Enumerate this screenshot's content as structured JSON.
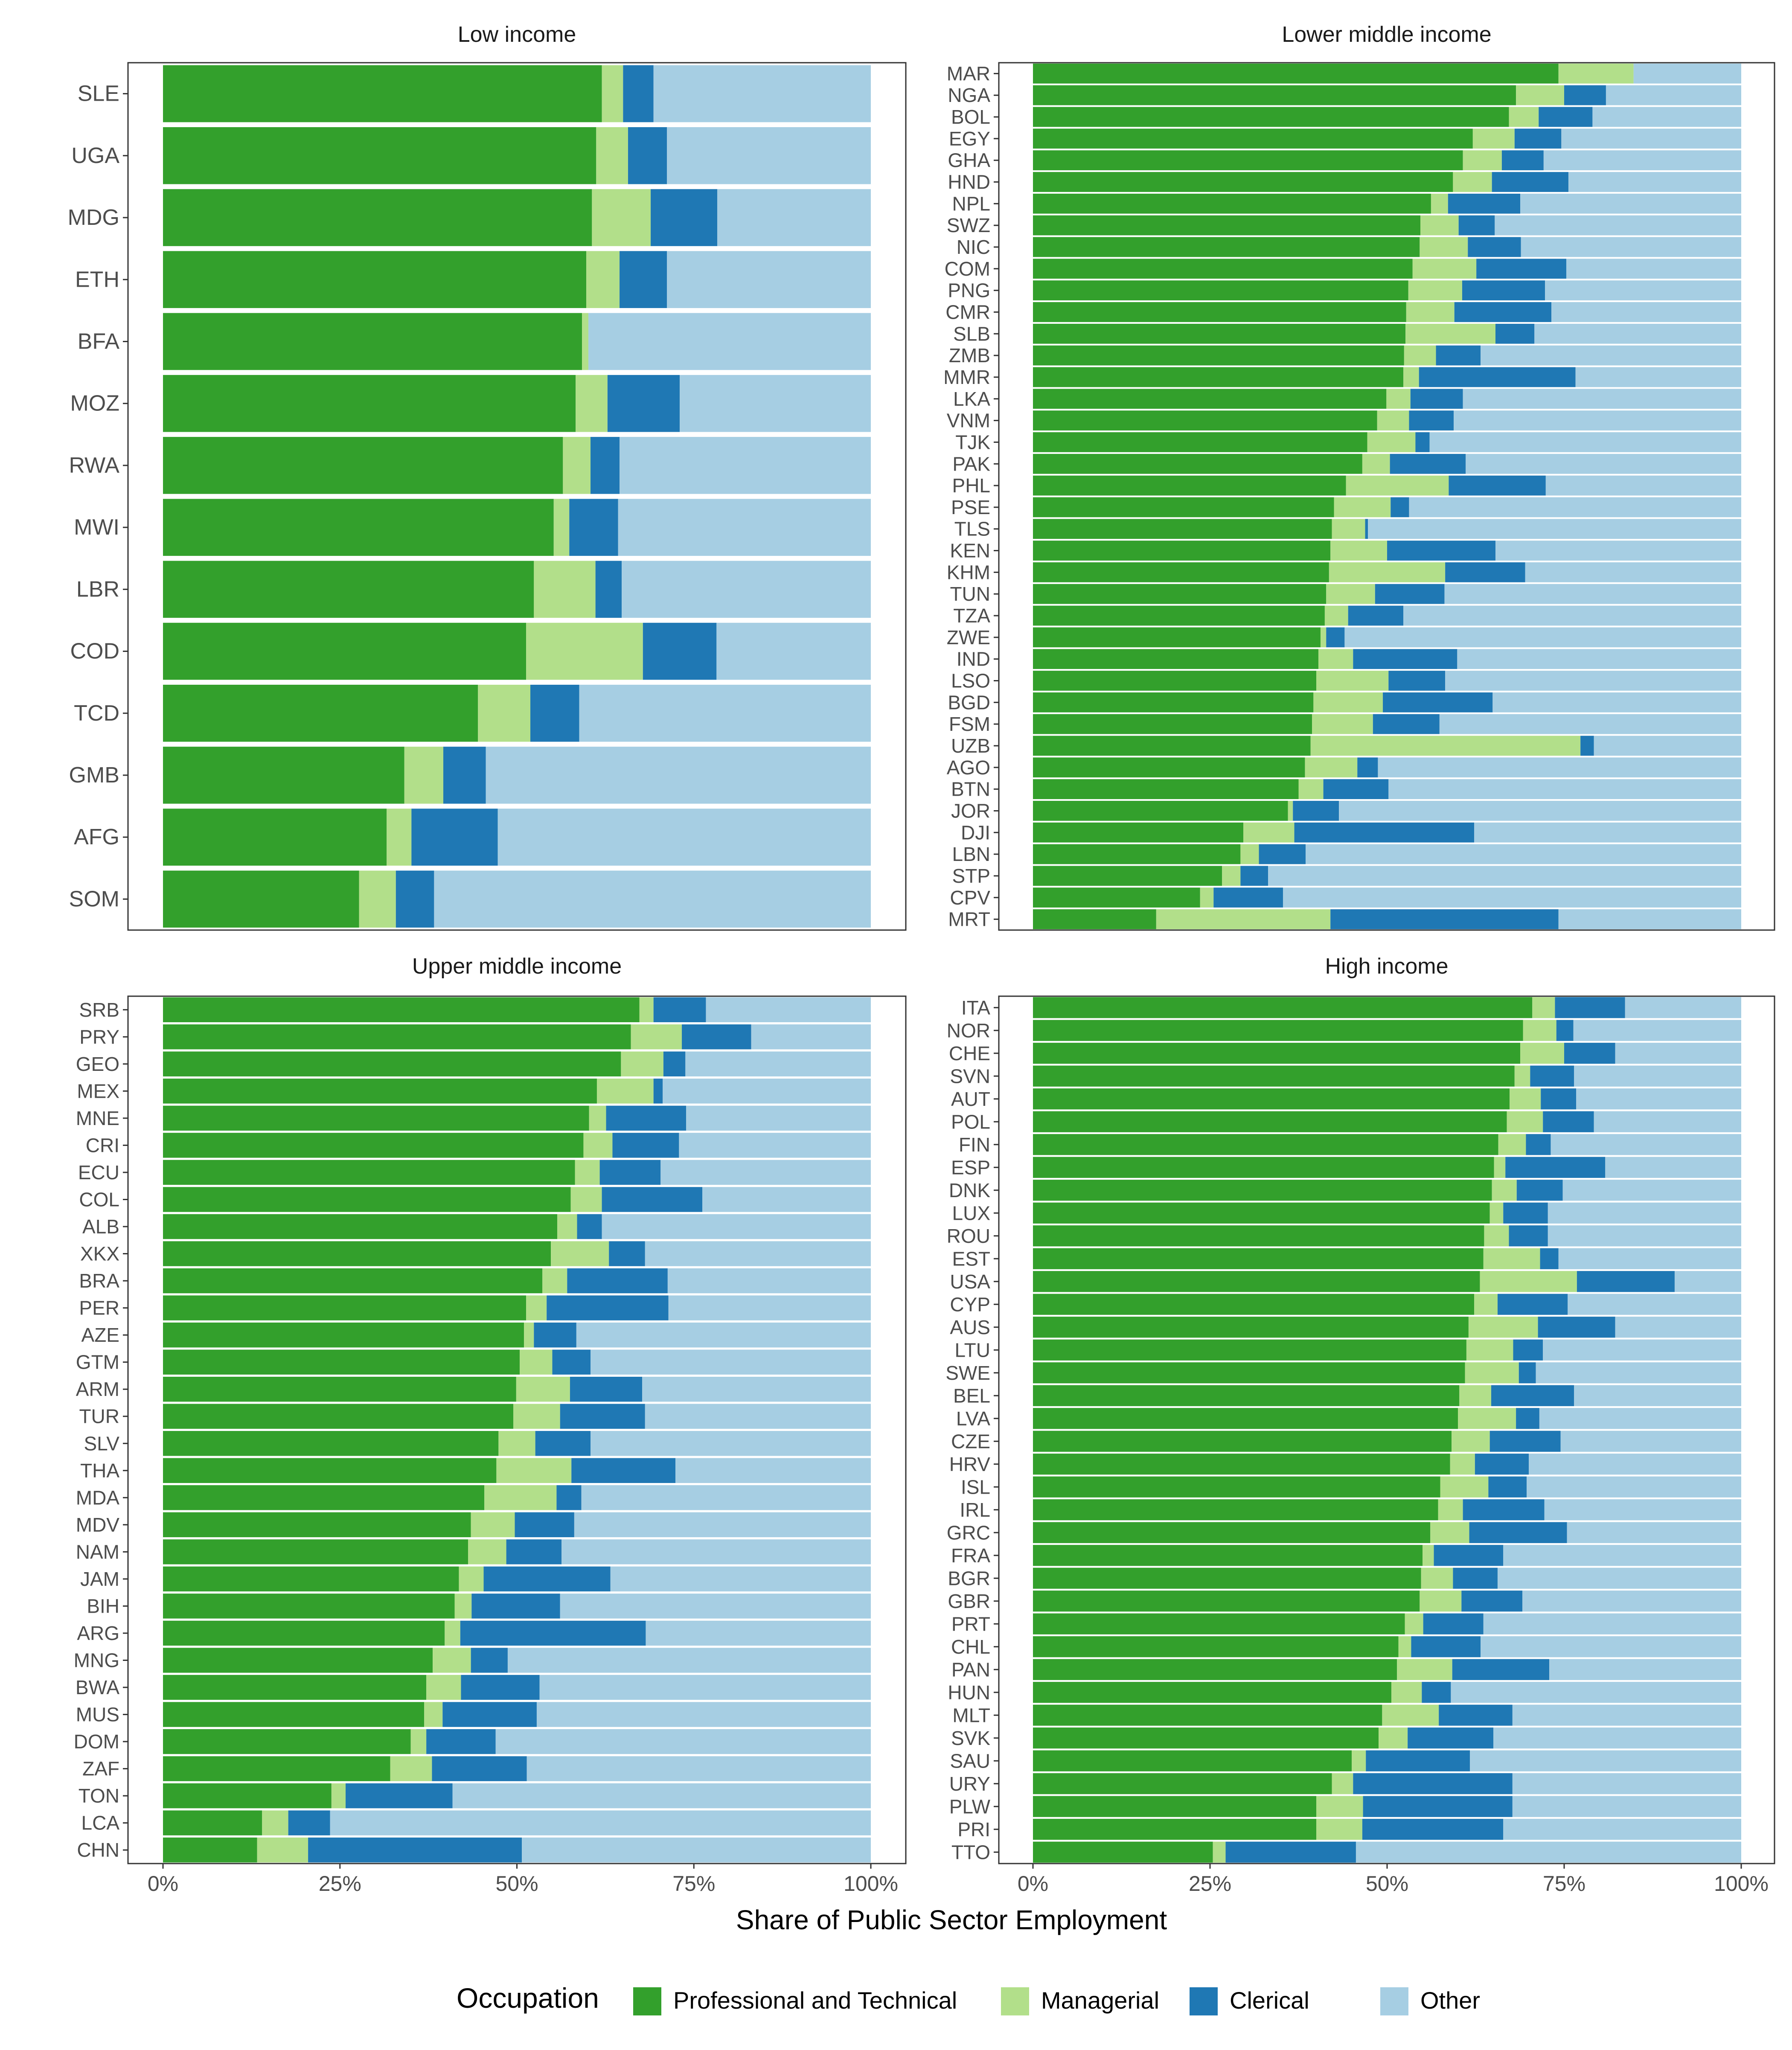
{
  "colors": {
    "Professional and Technical": "#33a02c",
    "Managerial": "#b2df8a",
    "Clerical": "#1f78b4",
    "Other": "#a6cee3"
  },
  "chart_data": {
    "type": "bar",
    "orientation": "horizontal",
    "stacked": "percent",
    "xlabel": "Share of Public Sector Employment",
    "xlim": [
      0,
      1
    ],
    "x_ticks": [
      {
        "value": 0,
        "label": "0%"
      },
      {
        "value": 0.25,
        "label": "25%"
      },
      {
        "value": 0.5,
        "label": "50%"
      },
      {
        "value": 0.75,
        "label": "75%"
      },
      {
        "value": 1,
        "label": "100%"
      }
    ],
    "legend": {
      "title": "Occupation",
      "position": "bottom",
      "entries": [
        "Professional and Technical",
        "Managerial",
        "Clerical",
        "Other"
      ]
    },
    "panels": [
      {
        "title": "Low income",
        "rows": [
          {
            "country": "SLE",
            "pro": 62.0,
            "man": 3.0,
            "cle": 4.3
          },
          {
            "country": "UGA",
            "pro": 61.2,
            "man": 4.5,
            "cle": 5.5
          },
          {
            "country": "MDG",
            "pro": 60.6,
            "man": 8.3,
            "cle": 9.4
          },
          {
            "country": "ETH",
            "pro": 59.8,
            "man": 4.7,
            "cle": 6.7
          },
          {
            "country": "BFA",
            "pro": 59.2,
            "man": 0.9,
            "cle": 0.0
          },
          {
            "country": "MOZ",
            "pro": 58.3,
            "man": 4.5,
            "cle": 10.2
          },
          {
            "country": "RWA",
            "pro": 56.5,
            "man": 3.9,
            "cle": 4.1
          },
          {
            "country": "MWI",
            "pro": 55.2,
            "man": 2.2,
            "cle": 6.9
          },
          {
            "country": "LBR",
            "pro": 52.4,
            "man": 8.7,
            "cle": 3.7
          },
          {
            "country": "COD",
            "pro": 51.3,
            "man": 16.5,
            "cle": 10.4
          },
          {
            "country": "TCD",
            "pro": 44.5,
            "man": 7.4,
            "cle": 6.9
          },
          {
            "country": "GMB",
            "pro": 34.1,
            "man": 5.5,
            "cle": 6.0
          },
          {
            "country": "AFG",
            "pro": 31.6,
            "man": 3.5,
            "cle": 12.2
          },
          {
            "country": "SOM",
            "pro": 27.7,
            "man": 5.2,
            "cle": 5.4
          }
        ]
      },
      {
        "title": "Lower middle income",
        "rows": [
          {
            "country": "MAR",
            "pro": 74.2,
            "man": 10.6,
            "cle": 0.0
          },
          {
            "country": "NGA",
            "pro": 68.2,
            "man": 6.8,
            "cle": 5.9
          },
          {
            "country": "BOL",
            "pro": 67.2,
            "man": 4.2,
            "cle": 7.6
          },
          {
            "country": "EGY",
            "pro": 62.1,
            "man": 5.9,
            "cle": 6.6
          },
          {
            "country": "GHA",
            "pro": 60.7,
            "man": 5.5,
            "cle": 5.9
          },
          {
            "country": "HND",
            "pro": 59.3,
            "man": 5.5,
            "cle": 10.8
          },
          {
            "country": "NPL",
            "pro": 56.2,
            "man": 2.4,
            "cle": 10.2
          },
          {
            "country": "SWZ",
            "pro": 54.7,
            "man": 5.4,
            "cle": 5.1
          },
          {
            "country": "NIC",
            "pro": 54.6,
            "man": 6.8,
            "cle": 7.5
          },
          {
            "country": "COM",
            "pro": 53.6,
            "man": 9.0,
            "cle": 12.7
          },
          {
            "country": "PNG",
            "pro": 53.0,
            "man": 7.6,
            "cle": 11.7
          },
          {
            "country": "CMR",
            "pro": 52.7,
            "man": 6.8,
            "cle": 13.7
          },
          {
            "country": "SLB",
            "pro": 52.6,
            "man": 12.7,
            "cle": 5.5
          },
          {
            "country": "ZMB",
            "pro": 52.4,
            "man": 4.5,
            "cle": 6.3
          },
          {
            "country": "MMR",
            "pro": 52.3,
            "man": 2.2,
            "cle": 22.1
          },
          {
            "country": "LKA",
            "pro": 49.9,
            "man": 3.4,
            "cle": 7.4
          },
          {
            "country": "VNM",
            "pro": 48.6,
            "man": 4.5,
            "cle": 6.3
          },
          {
            "country": "TJK",
            "pro": 47.2,
            "man": 6.8,
            "cle": 2.0
          },
          {
            "country": "PAK",
            "pro": 46.5,
            "man": 3.9,
            "cle": 10.7
          },
          {
            "country": "PHL",
            "pro": 44.2,
            "man": 14.5,
            "cle": 13.7
          },
          {
            "country": "PSE",
            "pro": 42.5,
            "man": 8.0,
            "cle": 2.6
          },
          {
            "country": "TLS",
            "pro": 42.2,
            "man": 4.7,
            "cle": 0.4
          },
          {
            "country": "KEN",
            "pro": 42.0,
            "man": 8.0,
            "cle": 15.3
          },
          {
            "country": "KHM",
            "pro": 41.8,
            "man": 16.4,
            "cle": 11.3
          },
          {
            "country": "TUN",
            "pro": 41.4,
            "man": 6.9,
            "cle": 9.8
          },
          {
            "country": "TZA",
            "pro": 41.2,
            "man": 3.3,
            "cle": 7.8
          },
          {
            "country": "ZWE",
            "pro": 40.6,
            "man": 0.8,
            "cle": 2.6
          },
          {
            "country": "IND",
            "pro": 40.3,
            "man": 4.9,
            "cle": 14.7
          },
          {
            "country": "LSO",
            "pro": 40.0,
            "man": 10.2,
            "cle": 8.0
          },
          {
            "country": "BGD",
            "pro": 39.6,
            "man": 9.8,
            "cle": 15.5
          },
          {
            "country": "FSM",
            "pro": 39.4,
            "man": 8.6,
            "cle": 9.4
          },
          {
            "country": "UZB",
            "pro": 39.2,
            "man": 38.1,
            "cle": 1.9
          },
          {
            "country": "AGO",
            "pro": 38.4,
            "man": 7.4,
            "cle": 2.9
          },
          {
            "country": "BTN",
            "pro": 37.5,
            "man": 3.5,
            "cle": 9.2
          },
          {
            "country": "JOR",
            "pro": 36.0,
            "man": 0.7,
            "cle": 6.5
          },
          {
            "country": "DJI",
            "pro": 29.7,
            "man": 7.2,
            "cle": 25.4
          },
          {
            "country": "LBN",
            "pro": 29.3,
            "man": 2.6,
            "cle": 6.6
          },
          {
            "country": "STP",
            "pro": 26.7,
            "man": 2.6,
            "cle": 3.9
          },
          {
            "country": "CPV",
            "pro": 23.6,
            "man": 1.9,
            "cle": 9.8
          },
          {
            "country": "MRT",
            "pro": 17.4,
            "man": 24.6,
            "cle": 32.2
          }
        ]
      },
      {
        "title": "Upper middle income",
        "rows": [
          {
            "country": "SRB",
            "pro": 67.3,
            "man": 2.0,
            "cle": 7.4
          },
          {
            "country": "PRY",
            "pro": 66.1,
            "man": 7.2,
            "cle": 9.8
          },
          {
            "country": "GEO",
            "pro": 64.7,
            "man": 6.0,
            "cle": 3.1
          },
          {
            "country": "MEX",
            "pro": 61.3,
            "man": 8.0,
            "cle": 1.3
          },
          {
            "country": "MNE",
            "pro": 60.2,
            "man": 2.4,
            "cle": 11.3
          },
          {
            "country": "CRI",
            "pro": 59.4,
            "man": 4.1,
            "cle": 9.4
          },
          {
            "country": "ECU",
            "pro": 58.2,
            "man": 3.5,
            "cle": 8.6
          },
          {
            "country": "COL",
            "pro": 57.6,
            "man": 4.4,
            "cle": 14.2
          },
          {
            "country": "ALB",
            "pro": 55.7,
            "man": 2.8,
            "cle": 3.5
          },
          {
            "country": "XKX",
            "pro": 54.8,
            "man": 8.2,
            "cle": 5.1
          },
          {
            "country": "BRA",
            "pro": 53.6,
            "man": 3.5,
            "cle": 14.2
          },
          {
            "country": "PER",
            "pro": 51.3,
            "man": 2.9,
            "cle": 17.2
          },
          {
            "country": "AZE",
            "pro": 51.0,
            "man": 1.4,
            "cle": 6.0
          },
          {
            "country": "GTM",
            "pro": 50.4,
            "man": 4.6,
            "cle": 5.4
          },
          {
            "country": "ARM",
            "pro": 49.9,
            "man": 7.6,
            "cle": 10.2
          },
          {
            "country": "TUR",
            "pro": 49.5,
            "man": 6.6,
            "cle": 12.0
          },
          {
            "country": "SLV",
            "pro": 47.4,
            "man": 5.2,
            "cle": 7.8
          },
          {
            "country": "THA",
            "pro": 47.1,
            "man": 10.6,
            "cle": 14.7
          },
          {
            "country": "MDA",
            "pro": 45.4,
            "man": 10.2,
            "cle": 3.5
          },
          {
            "country": "MDV",
            "pro": 43.5,
            "man": 6.2,
            "cle": 8.4
          },
          {
            "country": "NAM",
            "pro": 43.1,
            "man": 5.4,
            "cle": 7.8
          },
          {
            "country": "JAM",
            "pro": 41.8,
            "man": 3.5,
            "cle": 17.9
          },
          {
            "country": "BIH",
            "pro": 41.2,
            "man": 2.4,
            "cle": 12.5
          },
          {
            "country": "ARG",
            "pro": 39.8,
            "man": 2.2,
            "cle": 26.2
          },
          {
            "country": "MNG",
            "pro": 38.1,
            "man": 5.4,
            "cle": 5.2
          },
          {
            "country": "BWA",
            "pro": 37.2,
            "man": 4.9,
            "cle": 11.1
          },
          {
            "country": "MUS",
            "pro": 36.9,
            "man": 2.6,
            "cle": 13.3
          },
          {
            "country": "DOM",
            "pro": 35.0,
            "man": 2.2,
            "cle": 9.8
          },
          {
            "country": "ZAF",
            "pro": 32.1,
            "man": 5.9,
            "cle": 13.4
          },
          {
            "country": "TON",
            "pro": 23.8,
            "man": 2.0,
            "cle": 15.1
          },
          {
            "country": "LCA",
            "pro": 14.0,
            "man": 3.7,
            "cle": 5.9
          },
          {
            "country": "CHN",
            "pro": 13.3,
            "man": 7.2,
            "cle": 30.2
          }
        ]
      },
      {
        "title": "High income",
        "rows": [
          {
            "country": "ITA",
            "pro": 70.5,
            "man": 3.2,
            "cle": 9.9
          },
          {
            "country": "NOR",
            "pro": 69.2,
            "man": 4.7,
            "cle": 2.4
          },
          {
            "country": "CHE",
            "pro": 68.8,
            "man": 6.2,
            "cle": 7.2
          },
          {
            "country": "SVN",
            "pro": 68.0,
            "man": 2.2,
            "cle": 6.2
          },
          {
            "country": "AUT",
            "pro": 67.3,
            "man": 4.4,
            "cle": 5.0
          },
          {
            "country": "POL",
            "pro": 66.9,
            "man": 5.1,
            "cle": 7.2
          },
          {
            "country": "FIN",
            "pro": 65.7,
            "man": 3.9,
            "cle": 3.5
          },
          {
            "country": "ESP",
            "pro": 65.1,
            "man": 1.6,
            "cle": 14.1
          },
          {
            "country": "DNK",
            "pro": 64.8,
            "man": 3.5,
            "cle": 6.5
          },
          {
            "country": "LUX",
            "pro": 64.5,
            "man": 1.9,
            "cle": 6.3
          },
          {
            "country": "ROU",
            "pro": 63.7,
            "man": 3.5,
            "cle": 5.5
          },
          {
            "country": "EST",
            "pro": 63.6,
            "man": 8.0,
            "cle": 2.6
          },
          {
            "country": "USA",
            "pro": 63.1,
            "man": 13.7,
            "cle": 13.8
          },
          {
            "country": "CYP",
            "pro": 62.3,
            "man": 3.3,
            "cle": 9.9
          },
          {
            "country": "AUS",
            "pro": 61.5,
            "man": 9.8,
            "cle": 10.9
          },
          {
            "country": "LTU",
            "pro": 61.2,
            "man": 6.6,
            "cle": 4.2
          },
          {
            "country": "SWE",
            "pro": 61.0,
            "man": 7.6,
            "cle": 2.4
          },
          {
            "country": "BEL",
            "pro": 60.2,
            "man": 4.5,
            "cle": 11.7
          },
          {
            "country": "LVA",
            "pro": 60.0,
            "man": 8.2,
            "cle": 3.3
          },
          {
            "country": "CZE",
            "pro": 59.1,
            "man": 5.4,
            "cle": 10.0
          },
          {
            "country": "HRV",
            "pro": 58.9,
            "man": 3.5,
            "cle": 7.6
          },
          {
            "country": "ISL",
            "pro": 57.5,
            "man": 6.8,
            "cle": 5.4
          },
          {
            "country": "IRL",
            "pro": 57.2,
            "man": 3.5,
            "cle": 11.5
          },
          {
            "country": "GRC",
            "pro": 56.1,
            "man": 5.5,
            "cle": 13.8
          },
          {
            "country": "FRA",
            "pro": 55.0,
            "man": 1.6,
            "cle": 9.8
          },
          {
            "country": "BGR",
            "pro": 54.8,
            "man": 4.5,
            "cle": 6.3
          },
          {
            "country": "GBR",
            "pro": 54.6,
            "man": 5.9,
            "cle": 8.6
          },
          {
            "country": "PRT",
            "pro": 52.5,
            "man": 2.6,
            "cle": 8.5
          },
          {
            "country": "CHL",
            "pro": 51.6,
            "man": 1.8,
            "cle": 9.8
          },
          {
            "country": "PAN",
            "pro": 51.4,
            "man": 7.8,
            "cle": 13.7
          },
          {
            "country": "HUN",
            "pro": 50.6,
            "man": 4.3,
            "cle": 4.1
          },
          {
            "country": "MLT",
            "pro": 49.3,
            "man": 8.0,
            "cle": 10.4
          },
          {
            "country": "SVK",
            "pro": 48.8,
            "man": 4.1,
            "cle": 12.1
          },
          {
            "country": "SAU",
            "pro": 45.0,
            "man": 2.0,
            "cle": 14.7
          },
          {
            "country": "URY",
            "pro": 42.2,
            "man": 3.0,
            "cle": 22.5
          },
          {
            "country": "PLW",
            "pro": 40.0,
            "man": 6.6,
            "cle": 21.1
          },
          {
            "country": "PRI",
            "pro": 40.0,
            "man": 6.5,
            "cle": 19.9
          },
          {
            "country": "TTO",
            "pro": 25.4,
            "man": 1.8,
            "cle": 18.4
          }
        ]
      }
    ]
  }
}
